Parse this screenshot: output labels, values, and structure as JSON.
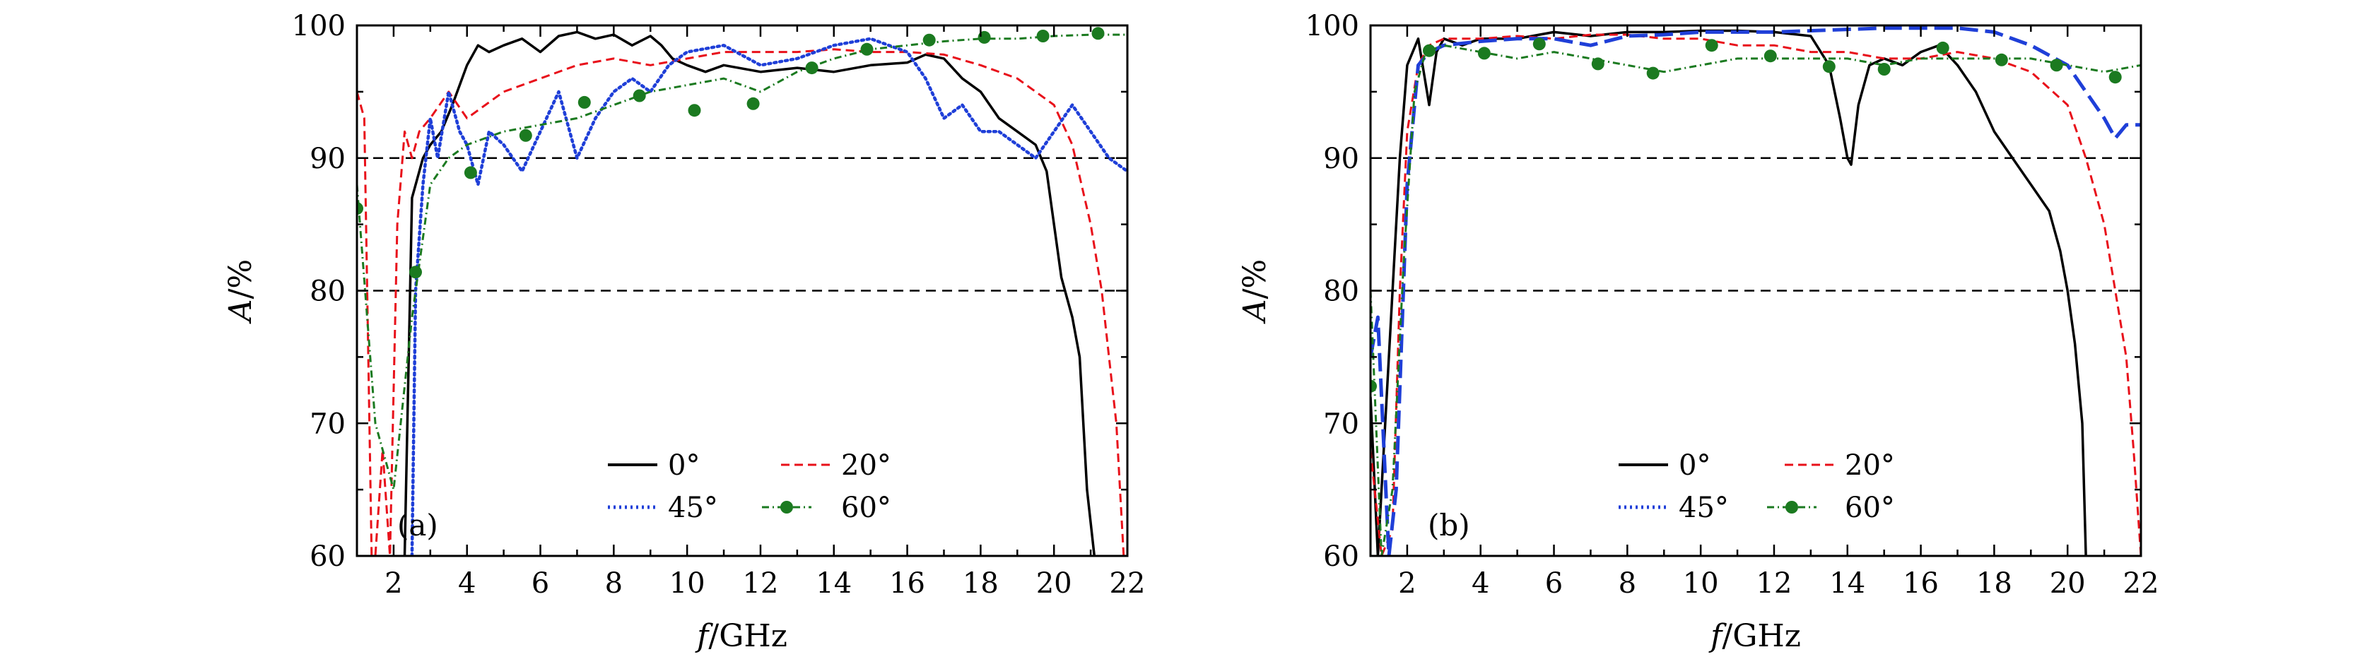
{
  "figure": {
    "panels": [
      "(a)",
      "(b)"
    ],
    "colors": {
      "black": "#000000",
      "red": "#e8101a",
      "blue": "#1f3fd8",
      "green": "#1b7a20",
      "reference": "#000000"
    }
  },
  "chart_data": [
    {
      "type": "line",
      "panel_tag": "(a)",
      "xlabel_italic": "f",
      "xlabel_unit": "/GHz",
      "ylabel_italic": "A",
      "ylabel_unit": "/%",
      "xlim": [
        1,
        22
      ],
      "ylim": [
        60,
        100
      ],
      "xticks": [
        2,
        4,
        6,
        8,
        10,
        12,
        14,
        16,
        18,
        20,
        22
      ],
      "xtick_labels": [
        "2",
        "4",
        "6",
        "8",
        "10",
        "12",
        "14",
        "16",
        "18",
        "20",
        "22"
      ],
      "yticks": [
        60,
        70,
        80,
        90,
        100
      ],
      "ytick_labels": [
        "60",
        "70",
        "80",
        "90",
        "100"
      ],
      "reference_lines": [
        90,
        80
      ],
      "legend": [
        "0°",
        "20°",
        "45°",
        "60°"
      ],
      "series": [
        {
          "name": "0°",
          "color": "#000000",
          "style": "solid",
          "x": [
            2.3,
            2.5,
            2.8,
            3.0,
            3.3,
            3.6,
            4.0,
            4.3,
            4.6,
            5.0,
            5.5,
            6.0,
            6.5,
            7.0,
            7.5,
            8.0,
            8.5,
            9.0,
            9.3,
            9.6,
            10.0,
            10.5,
            11.0,
            12.0,
            13.0,
            14.0,
            15.0,
            16.0,
            16.5,
            17.0,
            17.5,
            18.0,
            18.5,
            19.0,
            19.5,
            19.8,
            20.0,
            20.2,
            20.5,
            20.7,
            20.9,
            21.1
          ],
          "y": [
            60,
            87,
            90,
            91,
            92,
            94,
            97,
            98.5,
            98,
            98.5,
            99,
            98,
            99.2,
            99.5,
            99,
            99.3,
            98.5,
            99.2,
            98.5,
            97.5,
            97,
            96.5,
            97,
            96.5,
            96.8,
            96.5,
            97,
            97.2,
            97.8,
            97.5,
            96,
            95,
            93,
            92,
            91,
            89,
            85,
            81,
            78,
            75,
            65,
            60
          ]
        },
        {
          "name": "20°",
          "color": "#e8101a",
          "style": "dashed",
          "x": [
            1.0,
            1.2,
            1.4,
            1.5,
            1.7,
            1.9,
            2.1,
            2.3,
            2.5,
            2.7,
            3.0,
            3.5,
            4.0,
            4.5,
            5.0,
            6.0,
            7.0,
            8.0,
            9.0,
            10.0,
            11.0,
            12.0,
            13.0,
            14.0,
            15.0,
            16.0,
            17.0,
            18.0,
            19.0,
            20.0,
            20.5,
            21.0,
            21.3,
            21.5,
            21.7,
            21.9
          ],
          "y": [
            95,
            93,
            60,
            60,
            68,
            60,
            85,
            92,
            90,
            92,
            93,
            95,
            93,
            94,
            95,
            96,
            97,
            97.5,
            97,
            97.5,
            98,
            98,
            98,
            98.2,
            98,
            98,
            97.8,
            97,
            96,
            94,
            91,
            85,
            80,
            75,
            70,
            60
          ]
        },
        {
          "name": "45°",
          "color": "#1f3fd8",
          "style": "dotted",
          "x": [
            2.5,
            2.6,
            2.8,
            3.0,
            3.2,
            3.5,
            3.8,
            4.0,
            4.3,
            4.6,
            5.0,
            5.5,
            6.0,
            6.5,
            7.0,
            7.5,
            8.0,
            8.5,
            9.0,
            9.5,
            10.0,
            11.0,
            12.0,
            13.0,
            14.0,
            15.0,
            15.5,
            16.0,
            16.5,
            17.0,
            17.5,
            18.0,
            18.5,
            19.0,
            19.5,
            20.0,
            20.5,
            21.0,
            21.5,
            22.0
          ],
          "y": [
            60,
            80,
            88,
            93,
            90,
            95,
            92,
            91,
            88,
            92,
            91,
            89,
            92,
            95,
            90,
            93,
            95,
            96,
            95,
            97,
            98,
            98.5,
            97,
            97.5,
            98.5,
            99,
            98.5,
            98,
            96,
            93,
            94,
            92,
            92,
            91,
            90,
            92,
            94,
            92,
            90,
            89
          ]
        },
        {
          "name": "60°",
          "color": "#1b7a20",
          "style": "dashdot-marker",
          "x": [
            1.0,
            1.5,
            2.0,
            2.5,
            3.0,
            3.5,
            4.0,
            5.0,
            6.0,
            7.0,
            8.0,
            9.0,
            10.0,
            11.0,
            12.0,
            13.0,
            14.0,
            15.0,
            16.0,
            17.0,
            18.0,
            19.0,
            20.0,
            21.0,
            22.0
          ],
          "y": [
            88,
            70,
            65,
            78,
            88,
            90,
            91,
            92,
            92.5,
            93,
            94,
            95,
            95.5,
            96,
            95,
            96.5,
            97.5,
            98.2,
            98.5,
            98.8,
            99,
            99,
            99.2,
            99.3,
            99.3
          ],
          "markers_x": [
            1.0,
            2.6,
            4.1,
            5.6,
            7.2,
            8.7,
            10.2,
            11.8,
            13.4,
            14.9,
            16.6,
            18.1,
            19.7,
            21.2
          ],
          "markers_y": [
            86.2,
            81.4,
            88.9,
            91.7,
            94.2,
            94.7,
            93.6,
            94.1,
            96.8,
            98.2,
            98.9,
            99.1,
            99.2,
            99.4
          ]
        }
      ]
    },
    {
      "type": "line",
      "panel_tag": "(b)",
      "xlabel_italic": "f",
      "xlabel_unit": "/GHz",
      "ylabel_italic": "A",
      "ylabel_unit": "/%",
      "xlim": [
        1,
        22
      ],
      "ylim": [
        60,
        100
      ],
      "xticks": [
        2,
        4,
        6,
        8,
        10,
        12,
        14,
        16,
        18,
        20,
        22
      ],
      "xtick_labels": [
        "2",
        "4",
        "6",
        "8",
        "10",
        "12",
        "14",
        "16",
        "18",
        "20",
        "22"
      ],
      "yticks": [
        60,
        70,
        80,
        90,
        100
      ],
      "ytick_labels": [
        "60",
        "70",
        "80",
        "90",
        "100"
      ],
      "reference_lines": [
        90,
        80
      ],
      "legend": [
        "0°",
        "20°",
        "45°",
        "60°"
      ],
      "series": [
        {
          "name": "0°",
          "color": "#000000",
          "style": "solid",
          "x": [
            1.0,
            1.2,
            1.5,
            1.8,
            2.0,
            2.3,
            2.6,
            2.8,
            3.0,
            3.5,
            4.0,
            5.0,
            6.0,
            7.0,
            8.0,
            9.0,
            10.0,
            11.0,
            12.0,
            13.0,
            13.5,
            13.8,
            14.0,
            14.1,
            14.3,
            14.6,
            15.0,
            15.5,
            16.0,
            16.5,
            17.0,
            17.5,
            18.0,
            18.5,
            19.0,
            19.5,
            19.8,
            20.0,
            20.2,
            20.4,
            20.5
          ],
          "y": [
            72,
            60,
            75,
            90,
            97,
            99,
            94,
            98,
            99,
            98.5,
            99,
            99,
            99.5,
            99.2,
            99.5,
            99.5,
            99.6,
            99.6,
            99.5,
            99.2,
            97,
            93,
            90,
            89.5,
            94,
            97,
            97.5,
            97,
            98,
            98.5,
            97,
            95,
            92,
            90,
            88,
            86,
            83,
            80,
            76,
            70,
            60
          ]
        },
        {
          "name": "20°",
          "color": "#e8101a",
          "style": "dashed",
          "x": [
            1.0,
            1.3,
            1.6,
            1.8,
            2.0,
            2.3,
            2.6,
            3.0,
            4.0,
            5.0,
            6.0,
            7.0,
            8.0,
            9.0,
            10.0,
            11.0,
            12.0,
            13.0,
            14.0,
            15.0,
            16.0,
            17.0,
            18.0,
            19.0,
            20.0,
            20.5,
            21.0,
            21.3,
            21.6,
            21.8,
            22.0
          ],
          "y": [
            68,
            60,
            62,
            80,
            92,
            97,
            98.5,
            99,
            99,
            99.2,
            99,
            99.3,
            99.3,
            99,
            99,
            98.5,
            98.5,
            98,
            98,
            97.5,
            97.5,
            98,
            97.5,
            96.5,
            94,
            90,
            85,
            80,
            75,
            68,
            60
          ]
        },
        {
          "name": "45°",
          "color": "#1f3fd8",
          "style": "longdash",
          "x": [
            1.0,
            1.2,
            1.5,
            1.7,
            2.0,
            2.3,
            2.6,
            3.0,
            4.0,
            5.0,
            6.0,
            7.0,
            8.0,
            9.0,
            10.0,
            11.0,
            12.0,
            13.0,
            14.0,
            15.0,
            16.0,
            17.0,
            18.0,
            19.0,
            20.0,
            20.5,
            21.0,
            21.3,
            21.6,
            22.0
          ],
          "y": [
            75,
            78,
            60,
            65,
            88,
            97,
            98,
            98.5,
            98.8,
            99,
            99,
            98.5,
            99.2,
            99.3,
            99.5,
            99.5,
            99.5,
            99.6,
            99.7,
            99.8,
            99.8,
            99.8,
            99.5,
            98.5,
            97,
            95,
            93,
            91.5,
            92.5,
            92.5
          ]
        },
        {
          "name": "60°",
          "color": "#1b7a20",
          "style": "dashdot-marker",
          "x": [
            1.0,
            1.3,
            1.6,
            1.9,
            2.2,
            2.5,
            3.0,
            4.0,
            5.0,
            6.0,
            7.0,
            8.0,
            9.0,
            10.0,
            11.0,
            12.0,
            13.0,
            14.0,
            15.0,
            16.0,
            17.0,
            18.0,
            19.0,
            20.0,
            21.0,
            22.0
          ],
          "y": [
            80,
            60,
            65,
            82,
            95,
            98,
            98.5,
            98,
            97.5,
            98,
            97.5,
            97,
            96.5,
            97,
            97.5,
            97.5,
            97.5,
            97.5,
            97,
            97.5,
            97.5,
            97.5,
            97.5,
            97,
            96.5,
            97
          ],
          "markers_x": [
            1.0,
            2.6,
            4.1,
            5.6,
            7.2,
            8.7,
            10.3,
            11.9,
            13.5,
            15.0,
            16.6,
            18.2,
            19.7,
            21.3
          ],
          "markers_y": [
            72.8,
            98.1,
            97.9,
            98.6,
            97.1,
            96.4,
            98.5,
            97.7,
            96.9,
            96.7,
            98.3,
            97.4,
            97.0,
            96.1
          ]
        }
      ]
    }
  ]
}
